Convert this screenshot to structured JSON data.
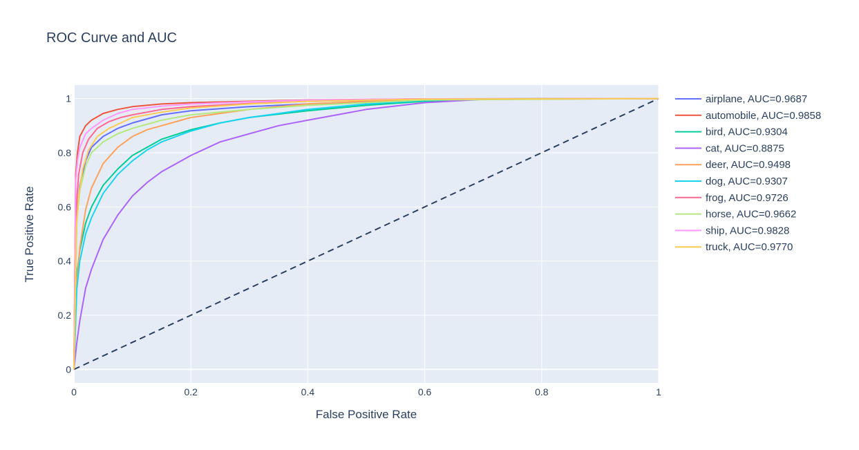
{
  "chart_data": {
    "type": "line",
    "title": "ROC Curve and AUC",
    "xlabel": "False Positive Rate",
    "ylabel": "True Positive Rate",
    "xlim": [
      0,
      1
    ],
    "ylim": [
      -0.05,
      1.05
    ],
    "x_ticks": [
      0,
      0.2,
      0.4,
      0.6,
      0.8,
      1
    ],
    "x_tick_labels": [
      "0",
      "0.2",
      "0.4",
      "0.6",
      "0.8",
      "1"
    ],
    "y_ticks": [
      0,
      0.2,
      0.4,
      0.6,
      0.8,
      1
    ],
    "y_tick_labels": [
      "0",
      "0.2",
      "0.4",
      "0.6",
      "0.8",
      "1"
    ],
    "grid": true,
    "legend_position": "right",
    "background_color": "#E5ECF6",
    "series": [
      {
        "name": "airplane, AUC=0.9687",
        "color": "#636EFA",
        "x": [
          0,
          0.005,
          0.01,
          0.02,
          0.03,
          0.05,
          0.075,
          0.1,
          0.15,
          0.2,
          0.3,
          0.4,
          0.5,
          0.6,
          0.7,
          1
        ],
        "y": [
          0,
          0.58,
          0.68,
          0.77,
          0.82,
          0.86,
          0.89,
          0.91,
          0.94,
          0.955,
          0.97,
          0.98,
          0.988,
          0.995,
          0.999,
          1
        ]
      },
      {
        "name": "automobile, AUC=0.9858",
        "color": "#EF553B",
        "x": [
          0,
          0.003,
          0.006,
          0.01,
          0.02,
          0.03,
          0.05,
          0.075,
          0.1,
          0.15,
          0.2,
          0.3,
          0.4,
          0.6,
          1
        ],
        "y": [
          0,
          0.72,
          0.8,
          0.86,
          0.9,
          0.92,
          0.945,
          0.96,
          0.97,
          0.98,
          0.985,
          0.99,
          0.995,
          0.999,
          1
        ]
      },
      {
        "name": "bird, AUC=0.9304",
        "color": "#00CC96",
        "x": [
          0,
          0.005,
          0.01,
          0.02,
          0.03,
          0.05,
          0.075,
          0.1,
          0.125,
          0.15,
          0.2,
          0.25,
          0.3,
          0.4,
          0.5,
          0.6,
          0.7,
          1
        ],
        "y": [
          0,
          0.35,
          0.44,
          0.54,
          0.6,
          0.68,
          0.74,
          0.79,
          0.82,
          0.85,
          0.885,
          0.91,
          0.93,
          0.955,
          0.975,
          0.99,
          0.998,
          1
        ]
      },
      {
        "name": "cat, AUC=0.8875",
        "color": "#AB63FA",
        "x": [
          0,
          0.005,
          0.01,
          0.02,
          0.03,
          0.05,
          0.075,
          0.1,
          0.125,
          0.15,
          0.2,
          0.25,
          0.3,
          0.35,
          0.4,
          0.45,
          0.5,
          0.6,
          0.7,
          1
        ],
        "y": [
          0,
          0.1,
          0.18,
          0.3,
          0.37,
          0.48,
          0.57,
          0.64,
          0.69,
          0.73,
          0.79,
          0.84,
          0.87,
          0.9,
          0.92,
          0.94,
          0.96,
          0.985,
          0.997,
          1
        ]
      },
      {
        "name": "deer, AUC=0.9498",
        "color": "#FFA15A",
        "x": [
          0,
          0.005,
          0.01,
          0.02,
          0.03,
          0.05,
          0.075,
          0.1,
          0.125,
          0.15,
          0.2,
          0.3,
          0.4,
          0.5,
          0.6,
          1
        ],
        "y": [
          0,
          0.32,
          0.45,
          0.59,
          0.67,
          0.76,
          0.82,
          0.86,
          0.885,
          0.9,
          0.93,
          0.96,
          0.98,
          0.99,
          0.998,
          1
        ]
      },
      {
        "name": "dog, AUC=0.9307",
        "color": "#19D3F3",
        "x": [
          0,
          0.005,
          0.01,
          0.02,
          0.03,
          0.05,
          0.075,
          0.1,
          0.125,
          0.15,
          0.2,
          0.25,
          0.3,
          0.4,
          0.5,
          0.6,
          0.7,
          1
        ],
        "y": [
          0,
          0.3,
          0.4,
          0.5,
          0.56,
          0.65,
          0.72,
          0.77,
          0.81,
          0.84,
          0.88,
          0.91,
          0.93,
          0.96,
          0.98,
          0.993,
          0.999,
          1
        ]
      },
      {
        "name": "frog, AUC=0.9726",
        "color": "#FF6692",
        "x": [
          0,
          0.004,
          0.008,
          0.015,
          0.025,
          0.04,
          0.06,
          0.08,
          0.1,
          0.15,
          0.2,
          0.3,
          0.4,
          0.6,
          1
        ],
        "y": [
          0,
          0.6,
          0.72,
          0.8,
          0.85,
          0.89,
          0.915,
          0.93,
          0.94,
          0.96,
          0.97,
          0.982,
          0.99,
          0.998,
          1
        ]
      },
      {
        "name": "horse, AUC=0.9662",
        "color": "#B6E880",
        "x": [
          0,
          0.005,
          0.01,
          0.02,
          0.03,
          0.05,
          0.075,
          0.1,
          0.15,
          0.2,
          0.3,
          0.4,
          0.5,
          0.6,
          1
        ],
        "y": [
          0,
          0.55,
          0.66,
          0.75,
          0.8,
          0.84,
          0.87,
          0.89,
          0.92,
          0.94,
          0.96,
          0.975,
          0.985,
          0.995,
          1
        ]
      },
      {
        "name": "ship, AUC=0.9828",
        "color": "#FF97FF",
        "x": [
          0,
          0.003,
          0.006,
          0.01,
          0.02,
          0.03,
          0.05,
          0.075,
          0.1,
          0.15,
          0.2,
          0.3,
          0.4,
          0.6,
          1
        ],
        "y": [
          0,
          0.7,
          0.77,
          0.82,
          0.87,
          0.89,
          0.92,
          0.945,
          0.96,
          0.972,
          0.98,
          0.988,
          0.994,
          0.999,
          1
        ]
      },
      {
        "name": "truck, AUC=0.9770",
        "color": "#FECB52",
        "x": [
          0,
          0.004,
          0.008,
          0.015,
          0.025,
          0.04,
          0.06,
          0.08,
          0.1,
          0.15,
          0.2,
          0.3,
          0.4,
          0.6,
          1
        ],
        "y": [
          0,
          0.52,
          0.64,
          0.74,
          0.81,
          0.86,
          0.89,
          0.91,
          0.93,
          0.95,
          0.965,
          0.98,
          0.99,
          0.998,
          1
        ]
      }
    ],
    "reference_line": {
      "x": [
        0,
        1
      ],
      "y": [
        0,
        1
      ],
      "style": "dashed",
      "color": "#2A3F5F"
    }
  }
}
